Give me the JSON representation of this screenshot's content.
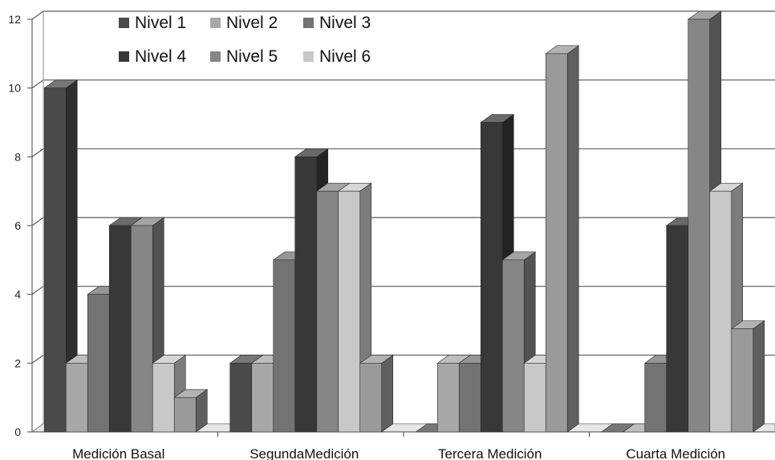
{
  "chart_data": {
    "type": "bar",
    "categories": [
      "Medición Basal",
      "SegundaMedición",
      "Tercera Medición",
      "Cuarta Medición"
    ],
    "series": [
      {
        "name": "Nivel 1",
        "color": "#4a4a4a",
        "values": [
          10,
          2,
          0,
          0
        ]
      },
      {
        "name": "Nivel 2",
        "color": "#a8a8a8",
        "values": [
          2,
          2,
          2,
          0
        ]
      },
      {
        "name": "Nivel 3",
        "color": "#737373",
        "values": [
          4,
          5,
          2,
          2
        ]
      },
      {
        "name": "Nivel 4",
        "color": "#383838",
        "values": [
          6,
          8,
          9,
          6
        ]
      },
      {
        "name": "Nivel 5",
        "color": "#868686",
        "values": [
          6,
          7,
          5,
          12
        ]
      },
      {
        "name": "Nivel 6",
        "color": "#c8c8c8",
        "values": [
          2,
          7,
          2,
          7
        ]
      },
      {
        "name": "",
        "color": "#9a9a9a",
        "values": [
          1,
          2,
          11,
          3
        ]
      }
    ],
    "y_ticks": [
      "0",
      "2",
      "4",
      "6",
      "8",
      "10",
      "12"
    ],
    "ylim": [
      0,
      12
    ],
    "grid": true,
    "legend_position": "top-left"
  }
}
